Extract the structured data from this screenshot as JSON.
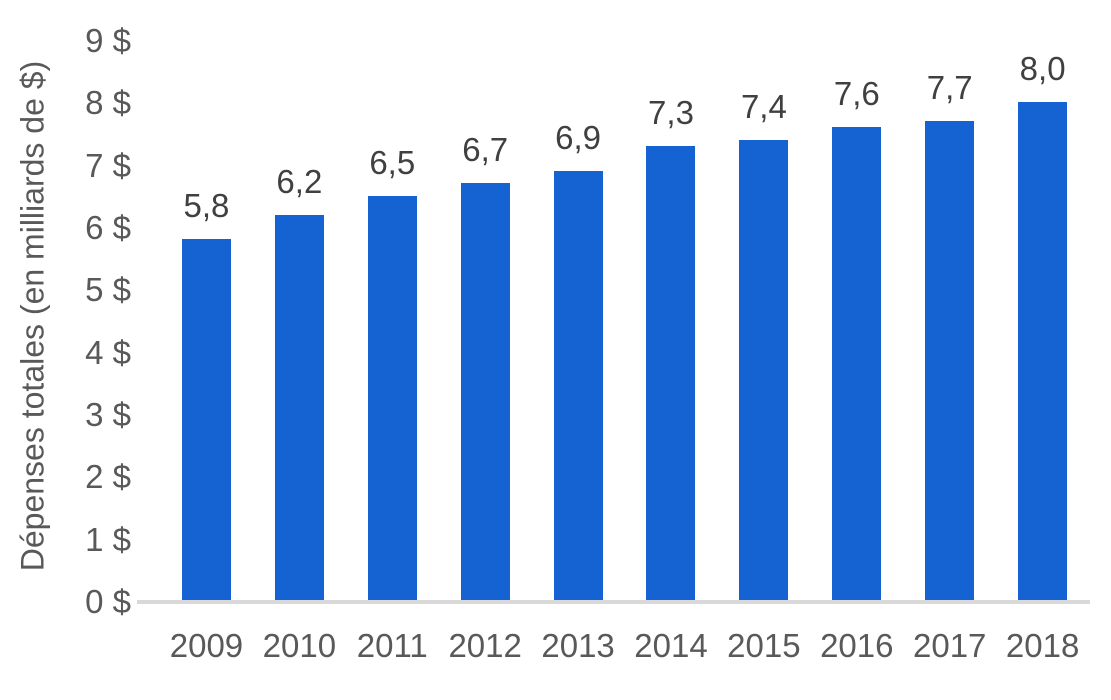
{
  "chart_data": {
    "type": "bar",
    "title": "",
    "xlabel": "",
    "ylabel": "Dépenses totales (en milliards de $)",
    "categories": [
      "2009",
      "2010",
      "2011",
      "2012",
      "2013",
      "2014",
      "2015",
      "2016",
      "2017",
      "2018"
    ],
    "values": [
      5.8,
      6.2,
      6.5,
      6.7,
      6.9,
      7.3,
      7.4,
      7.6,
      7.7,
      8.0
    ],
    "bar_labels": [
      "5,8",
      "6,2",
      "6,5",
      "6,7",
      "6,9",
      "7,3",
      "7,4",
      "7,6",
      "7,7",
      "8,0"
    ],
    "ylim": [
      0,
      9
    ],
    "yticks": [
      {
        "value": 0,
        "label": "0 $"
      },
      {
        "value": 1,
        "label": "1 $"
      },
      {
        "value": 2,
        "label": "2 $"
      },
      {
        "value": 3,
        "label": "3 $"
      },
      {
        "value": 4,
        "label": "4 $"
      },
      {
        "value": 5,
        "label": "5 $"
      },
      {
        "value": 6,
        "label": "6 $"
      },
      {
        "value": 7,
        "label": "7 $"
      },
      {
        "value": 8,
        "label": "8 $"
      },
      {
        "value": 9,
        "label": "9 $"
      }
    ],
    "grid": false,
    "legend": "none",
    "colors": {
      "bar": "#1562d2",
      "axis_line": "#d9d9d9",
      "tick_text": "#595959",
      "data_label_text": "#404040"
    }
  }
}
